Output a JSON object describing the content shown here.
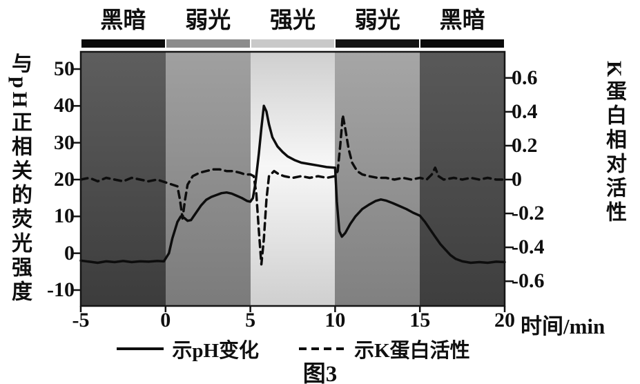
{
  "figure": {
    "caption": "图3"
  },
  "legend": {
    "items": [
      {
        "label": "示pH变化",
        "style": "solid"
      },
      {
        "label": "示K蛋白活性",
        "style": "dashed"
      }
    ]
  },
  "chart_data": {
    "type": "line",
    "x_axis": {
      "label": "时间/min",
      "ticks": [
        -5,
        0,
        5,
        10,
        15,
        20
      ],
      "range": [
        -5,
        20
      ]
    },
    "y_left": {
      "label": "与pH正相关的荧光强度",
      "ticks": [
        50,
        40,
        30,
        20,
        10,
        0,
        -10
      ],
      "range": [
        -10,
        50
      ]
    },
    "y_right": {
      "label": "K蛋白相对活性",
      "ticks": [
        0.6,
        0.4,
        0.2,
        0,
        -0.2,
        -0.4,
        -0.6
      ],
      "range": [
        -0.6,
        0.6
      ]
    },
    "light_phases": [
      {
        "label": "黑暗",
        "range": [
          -5,
          0
        ],
        "kind": "dark",
        "strip_color": "#0b0b0b",
        "fill_top": "#5e5e5e",
        "fill_bottom": "#3c3c3c"
      },
      {
        "label": "弱光",
        "range": [
          0,
          5
        ],
        "kind": "weak",
        "strip_color": "#8c8c8c",
        "fill_top": "#a0a0a0",
        "fill_bottom": "#7b7b7b"
      },
      {
        "label": "强光",
        "range": [
          5,
          10
        ],
        "kind": "strong",
        "strip_color": "#c9c9c9",
        "fill_top": "#f7f7f7",
        "fill_bottom": "#cfcfcf"
      },
      {
        "label": "弱光",
        "range": [
          10,
          15
        ],
        "kind": "weak",
        "strip_color": "#141414",
        "fill_top": "#a6a6a6",
        "fill_bottom": "#808080"
      },
      {
        "label": "黑暗",
        "range": [
          15,
          20
        ],
        "kind": "dark",
        "strip_color": "#0b0b0b",
        "fill_top": "#595959",
        "fill_bottom": "#3e3e3e"
      }
    ],
    "series": [
      {
        "name": "示pH变化",
        "axis": "left",
        "style": "solid",
        "color": "#0d0d0d",
        "points": [
          [
            -5,
            -2
          ],
          [
            -4.5,
            -2.3
          ],
          [
            -4,
            -2.6
          ],
          [
            -3.5,
            -2.2
          ],
          [
            -3,
            -2.4
          ],
          [
            -2.5,
            -2.1
          ],
          [
            -2,
            -2.4
          ],
          [
            -1.5,
            -2.2
          ],
          [
            -1,
            -2.3
          ],
          [
            -0.5,
            -2.1
          ],
          [
            -0.1,
            -2.2
          ],
          [
            0.2,
            0
          ],
          [
            0.4,
            4
          ],
          [
            0.7,
            8.5
          ],
          [
            0.9,
            10
          ],
          [
            1.1,
            9.6
          ],
          [
            1.3,
            8.8
          ],
          [
            1.5,
            9
          ],
          [
            1.8,
            11
          ],
          [
            2.1,
            13
          ],
          [
            2.4,
            14.5
          ],
          [
            2.7,
            15.3
          ],
          [
            3,
            15.8
          ],
          [
            3.3,
            16.3
          ],
          [
            3.6,
            16.5
          ],
          [
            3.9,
            16.2
          ],
          [
            4.2,
            15.6
          ],
          [
            4.5,
            15
          ],
          [
            4.8,
            14.2
          ],
          [
            5,
            14
          ],
          [
            5.15,
            15
          ],
          [
            5.3,
            19
          ],
          [
            5.5,
            27
          ],
          [
            5.65,
            34
          ],
          [
            5.8,
            40
          ],
          [
            5.95,
            38.5
          ],
          [
            6.1,
            35
          ],
          [
            6.3,
            31.5
          ],
          [
            6.6,
            29
          ],
          [
            6.9,
            27.5
          ],
          [
            7.2,
            26.3
          ],
          [
            7.6,
            25.3
          ],
          [
            8,
            24.6
          ],
          [
            8.5,
            24.2
          ],
          [
            9,
            23.8
          ],
          [
            9.5,
            23.4
          ],
          [
            10,
            23.2
          ],
          [
            10.1,
            14
          ],
          [
            10.25,
            6
          ],
          [
            10.4,
            4.5
          ],
          [
            10.6,
            5.5
          ],
          [
            10.9,
            8
          ],
          [
            11.2,
            10
          ],
          [
            11.6,
            12
          ],
          [
            12,
            13.2
          ],
          [
            12.4,
            14.2
          ],
          [
            12.7,
            14.6
          ],
          [
            13,
            14.3
          ],
          [
            13.4,
            13.6
          ],
          [
            13.8,
            12.8
          ],
          [
            14.2,
            12
          ],
          [
            14.6,
            11
          ],
          [
            15,
            10.2
          ],
          [
            15.3,
            8.5
          ],
          [
            15.6,
            6.5
          ],
          [
            15.9,
            4.5
          ],
          [
            16.2,
            2.5
          ],
          [
            16.5,
            1
          ],
          [
            16.8,
            -0.5
          ],
          [
            17.1,
            -1.5
          ],
          [
            17.5,
            -2.2
          ],
          [
            18,
            -2.6
          ],
          [
            18.5,
            -2.4
          ],
          [
            19,
            -2.6
          ],
          [
            19.5,
            -2.3
          ],
          [
            20,
            -2.4
          ]
        ]
      },
      {
        "name": "示K蛋白活性",
        "axis": "right",
        "style": "dashed",
        "color": "#0d0d0d",
        "points": [
          [
            -5,
            0
          ],
          [
            -4.5,
            0.01
          ],
          [
            -4,
            -0.01
          ],
          [
            -3.5,
            0.01
          ],
          [
            -3,
            0
          ],
          [
            -2.5,
            -0.01
          ],
          [
            -2,
            0.01
          ],
          [
            -1.5,
            0
          ],
          [
            -1,
            -0.01
          ],
          [
            -0.5,
            0
          ],
          [
            -0.2,
            -0.01
          ],
          [
            0.1,
            -0.02
          ],
          [
            0.4,
            -0.03
          ],
          [
            0.7,
            -0.04
          ],
          [
            0.85,
            -0.12
          ],
          [
            1,
            -0.23
          ],
          [
            1.15,
            -0.12
          ],
          [
            1.3,
            -0.03
          ],
          [
            1.6,
            0.02
          ],
          [
            2,
            0.04
          ],
          [
            2.4,
            0.05
          ],
          [
            2.8,
            0.06
          ],
          [
            3.2,
            0.06
          ],
          [
            3.6,
            0.05
          ],
          [
            4,
            0.05
          ],
          [
            4.4,
            0.04
          ],
          [
            4.7,
            0.03
          ],
          [
            5,
            0.03
          ],
          [
            5.2,
            0.02
          ],
          [
            5.35,
            -0.08
          ],
          [
            5.5,
            -0.3
          ],
          [
            5.65,
            -0.5
          ],
          [
            5.8,
            -0.35
          ],
          [
            5.95,
            -0.12
          ],
          [
            6.1,
            0.02
          ],
          [
            6.4,
            0.05
          ],
          [
            6.7,
            0.03
          ],
          [
            7,
            0.02
          ],
          [
            7.5,
            0.01
          ],
          [
            8,
            0.02
          ],
          [
            8.5,
            0.01
          ],
          [
            9,
            0.02
          ],
          [
            9.5,
            0.01
          ],
          [
            10,
            0.02
          ],
          [
            10.15,
            0.05
          ],
          [
            10.3,
            0.2
          ],
          [
            10.45,
            0.38
          ],
          [
            10.6,
            0.3
          ],
          [
            10.8,
            0.18
          ],
          [
            11,
            0.1
          ],
          [
            11.3,
            0.05
          ],
          [
            11.6,
            0.03
          ],
          [
            12,
            0.02
          ],
          [
            12.5,
            0.01
          ],
          [
            13,
            0.01
          ],
          [
            13.5,
            0
          ],
          [
            14,
            0.01
          ],
          [
            14.5,
            0
          ],
          [
            15,
            0.01
          ],
          [
            15.4,
            0
          ],
          [
            15.7,
            0.03
          ],
          [
            15.9,
            0.07
          ],
          [
            16.1,
            0.02
          ],
          [
            16.4,
            0
          ],
          [
            17,
            0.01
          ],
          [
            17.5,
            0
          ],
          [
            18,
            0.01
          ],
          [
            18.5,
            0
          ],
          [
            19,
            0.01
          ],
          [
            19.5,
            0
          ],
          [
            20,
            0
          ]
        ]
      }
    ]
  }
}
